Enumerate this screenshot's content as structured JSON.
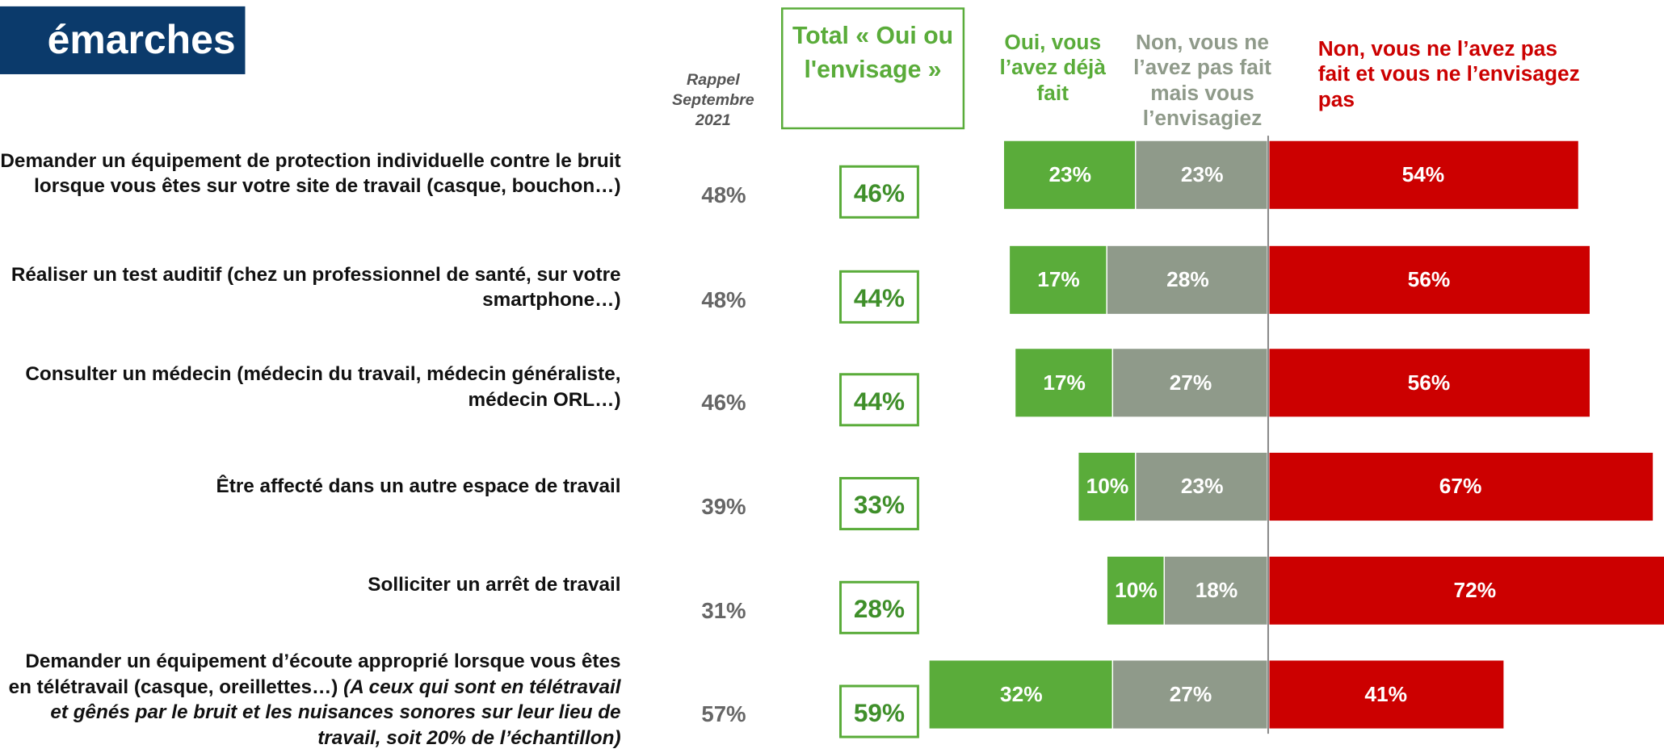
{
  "chart_data": {
    "type": "diverging-stacked-bar",
    "title": "émarches",
    "recall_header": "Rappel Septembre 2021",
    "total_header": "Total « Oui ou l'envisage »",
    "categories": [
      "Demander un équipement de protection individuelle contre le bruit lorsque vous êtes sur votre site de travail (casque, bouchon…)",
      "Réaliser un test auditif (chez un professionnel de santé, sur votre smartphone…)",
      "Consulter un médecin (médecin du travail, médecin généraliste, médecin ORL…)",
      "Être affecté dans un autre espace de travail",
      "Solliciter un arrêt de travail",
      "Demander un équipement d’écoute approprié lorsque vous êtes en télétravail (casque, oreillettes…)"
    ],
    "category_notes": [
      null,
      null,
      null,
      null,
      null,
      "(A ceux qui sont en télétravail et gênés par le bruit et les nuisances sonores sur leur lieu de travail, soit 20% de l’échantillon)"
    ],
    "recall": {
      "values": [
        48,
        48,
        46,
        39,
        31,
        57
      ],
      "value_labels": [
        "48%",
        "48%",
        "46%",
        "39%",
        "31%",
        "57%"
      ]
    },
    "total": {
      "values": [
        46,
        44,
        44,
        33,
        28,
        59
      ],
      "value_labels": [
        "46%",
        "44%",
        "44%",
        "33%",
        "28%",
        "59%"
      ]
    },
    "series": [
      {
        "name": "Oui, vous l’avez déjà fait",
        "color": "#5aac3a",
        "side": "left",
        "values": [
          23,
          17,
          17,
          10,
          10,
          32
        ],
        "value_labels": [
          "23%",
          "17%",
          "17%",
          "10%",
          "10%",
          "32%"
        ]
      },
      {
        "name": "Non, vous ne l’avez pas fait mais vous l’envisagiez",
        "color": "#8f9a8a",
        "side": "left",
        "values": [
          23,
          28,
          27,
          23,
          18,
          27
        ],
        "value_labels": [
          "23%",
          "28%",
          "27%",
          "23%",
          "18%",
          "27%"
        ]
      },
      {
        "name": "Non, vous ne l’avez pas fait et vous ne l’envisagez pas",
        "color": "#cc0000",
        "side": "right",
        "values": [
          54,
          56,
          56,
          67,
          72,
          41
        ],
        "value_labels": [
          "54%",
          "56%",
          "56%",
          "67%",
          "72%",
          "41%"
        ]
      }
    ]
  }
}
